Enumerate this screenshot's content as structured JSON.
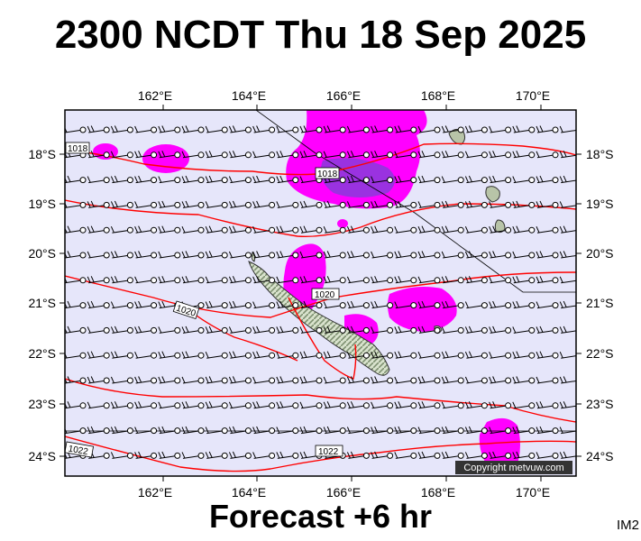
{
  "title": "2300 NCDT Thu 18 Sep 2025",
  "subtitle": "Forecast +6 hr",
  "image_id": "IM2",
  "copyright": "Copyright metvuw.com",
  "longitude_labels": [
    "162°E",
    "164°E",
    "166°E",
    "168°E",
    "170°E"
  ],
  "latitude_labels": [
    "18°S",
    "19°S",
    "20°S",
    "21°S",
    "22°S",
    "23°S",
    "24°S"
  ],
  "isobar_labels": [
    "1018",
    "1018",
    "1020",
    "1020",
    "1022",
    "1022"
  ],
  "colors": {
    "ocean": "#e6e6fa",
    "precip_light": "#ff00ff",
    "precip_heavy": "#9a32e0",
    "isobar": "#ff0000",
    "land": "#c8d8c0",
    "label_box": "#333333"
  }
}
